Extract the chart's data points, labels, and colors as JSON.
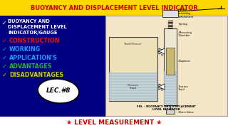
{
  "title": "BUOYANCY AND DISPLACEMENT LEVEL INDICATOR",
  "title_bg": "#FFD700",
  "title_color": "#CC0000",
  "bg_color": "#000080",
  "bullet_items": [
    {
      "text": "BUOYANCY AND\nDISPLACEMENT LEVEL\nINDICATOR/GAUGE",
      "color": "#FFFFFF",
      "check_color": "#FFFFFF",
      "fontsize": 4.8,
      "bold": true
    },
    {
      "text": "CONSTRUCTION",
      "color": "#EE1111",
      "check_color": "#EE1111",
      "fontsize": 5.8,
      "bold": true
    },
    {
      "text": "WORKING",
      "color": "#2299FF",
      "check_color": "#2299FF",
      "fontsize": 5.8,
      "bold": true
    },
    {
      "text": "APPLICATION'S",
      "color": "#2299FF",
      "check_color": "#2299FF",
      "fontsize": 5.8,
      "bold": true
    },
    {
      "text": "ADVANTAGES",
      "color": "#22BB22",
      "check_color": "#22BB22",
      "fontsize": 5.8,
      "bold": true
    },
    {
      "text": "DISADVANTAGES",
      "color": "#CCCC00",
      "check_color": "#CCCC00",
      "fontsize": 5.8,
      "bold": true
    }
  ],
  "lec_text": "LEC.#8",
  "fig_caption": "FIG. : BUOYANCY AND DISPLACEMENT\nLEVEL INDICATOR",
  "bottom_text": "★ LEVEL MEASUREMENT ★",
  "bottom_color": "#CC0000",
  "diagram_bg": "#F5E6C8",
  "diagram_border": "#888888"
}
